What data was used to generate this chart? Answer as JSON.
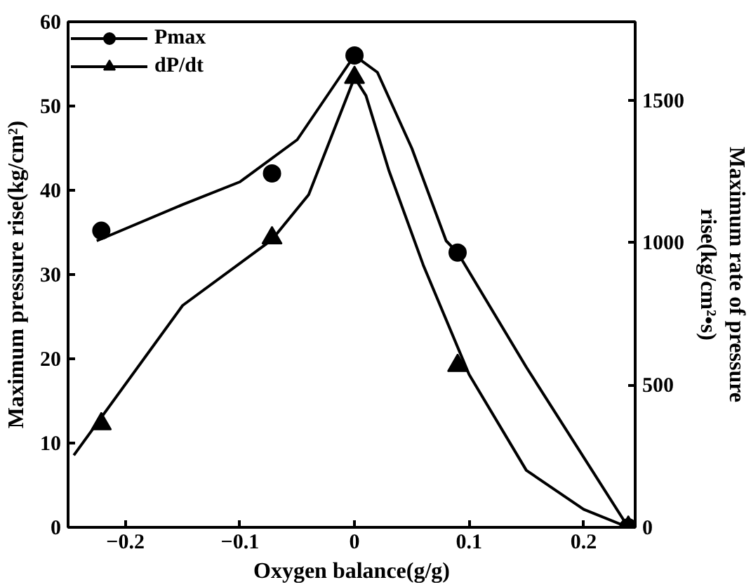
{
  "chart_data": {
    "type": "line",
    "xlabel": "Oxygen balance(g/g)",
    "ylabel": "Maximum pressure rise(kg/cm²)",
    "y2label": "Maximum rate of pressure rise(kg/cm²•s)",
    "xlim": [
      -0.25,
      0.245
    ],
    "xticks": [
      -0.2,
      -0.1,
      0,
      0.1,
      0.2
    ],
    "ylim": [
      0,
      60
    ],
    "yticks": [
      0,
      10,
      20,
      30,
      40,
      50,
      60
    ],
    "y2lim": [
      0,
      1775
    ],
    "y2ticks": [
      0,
      500,
      1000,
      1500
    ],
    "grid": false,
    "legend": "top left",
    "series": [
      {
        "name": "Pmax",
        "type": "scatter",
        "marker": "circle",
        "color": "#000000",
        "x": [
          -0.221,
          -0.072,
          0.0,
          0.09,
          0.239
        ],
        "values": [
          35.2,
          42,
          56,
          32.6,
          0
        ]
      },
      {
        "color": "#000000",
        "x": [
          -0.225,
          -0.15,
          -0.1,
          -0.05,
          -0.02,
          0.0,
          0.02,
          0.05,
          0.08,
          0.09,
          0.15,
          0.239
        ],
        "values": [
          34,
          38.3,
          41,
          46,
          52,
          56,
          54,
          45,
          34,
          32.6,
          19,
          0
        ]
      },
      {
        "name": "dP/dt",
        "type": "scatter",
        "marker": "triangle",
        "axis": "y2",
        "color": "#000000",
        "x": [
          -0.221,
          -0.072,
          0.0,
          0.09,
          0.239
        ],
        "values": [
          363,
          1016,
          1579,
          568,
          0
        ]
      },
      {
        "axis": "y2",
        "color": "#000000",
        "x": [
          -0.245,
          -0.15,
          -0.072,
          -0.04,
          0.0,
          0.01,
          0.03,
          0.06,
          0.1,
          0.15,
          0.2,
          0.239
        ],
        "values": [
          253,
          779,
          1010,
          1168,
          1579,
          1516,
          1253,
          921,
          537,
          200,
          63,
          0
        ]
      }
    ]
  }
}
